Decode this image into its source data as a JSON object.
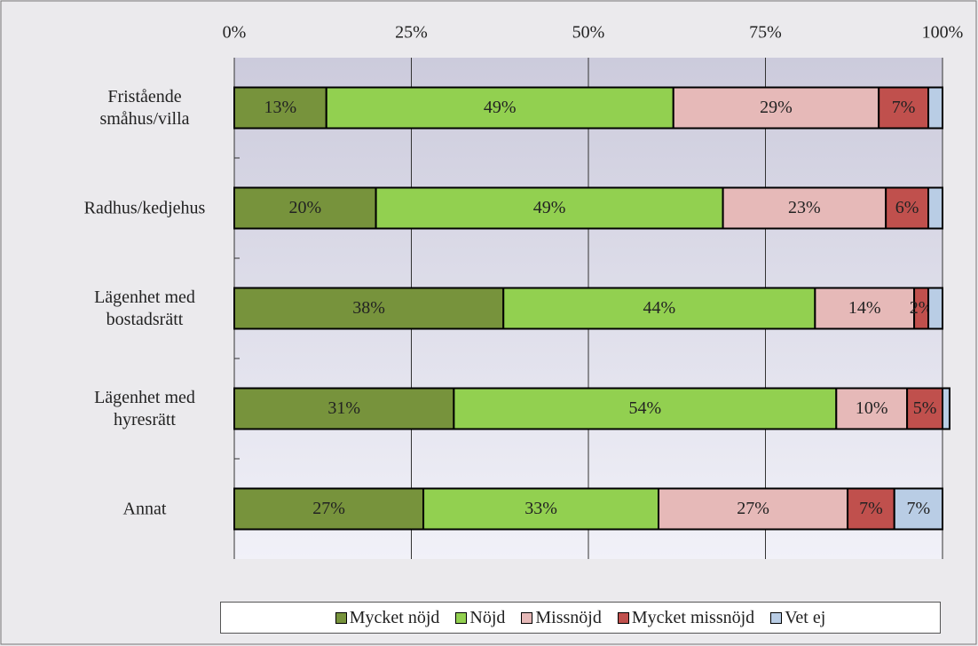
{
  "chart_data": {
    "type": "bar",
    "orientation": "horizontal",
    "stacked": true,
    "categories": [
      "Fristående småhus/villa",
      "Radhus/kedjehus",
      "Lägenhet med bostadsrätt",
      "Lägenhet med hyresrätt",
      "Annat"
    ],
    "series": [
      {
        "name": "Mycket nöjd",
        "color": "#77933c",
        "values": [
          13,
          20,
          38,
          31,
          26.7
        ],
        "value_labels": [
          "13%",
          "20%",
          "38%",
          "31%",
          "27%"
        ]
      },
      {
        "name": "Nöjd",
        "color": "#92d050",
        "values": [
          49,
          49,
          44,
          54,
          33.2
        ],
        "value_labels": [
          "49%",
          "49%",
          "44%",
          "54%",
          "33%"
        ]
      },
      {
        "name": "Missnöjd",
        "color": "#e6b9b8",
        "values": [
          29,
          23,
          14,
          10,
          26.7
        ],
        "value_labels": [
          "29%",
          "23%",
          "14%",
          "10%",
          "27%"
        ]
      },
      {
        "name": "Mycket missnöjd",
        "color": "#c0504d",
        "values": [
          7,
          6,
          2,
          5,
          6.6
        ],
        "value_labels": [
          "7%",
          "6%",
          "2%",
          "5%",
          "7%"
        ]
      },
      {
        "name": "Vet ej",
        "color": "#b9cde5",
        "values": [
          2,
          2,
          2,
          1,
          6.8
        ],
        "value_labels": [
          null,
          null,
          null,
          null,
          "7%"
        ]
      }
    ],
    "xlim": [
      0,
      100
    ],
    "xticks": [
      {
        "value": 0,
        "label": "0%"
      },
      {
        "value": 25,
        "label": "25%"
      },
      {
        "value": 50,
        "label": "50%"
      },
      {
        "value": 75,
        "label": "75%"
      },
      {
        "value": 100,
        "label": "100%"
      }
    ],
    "grid": true,
    "legend": "bottom"
  }
}
